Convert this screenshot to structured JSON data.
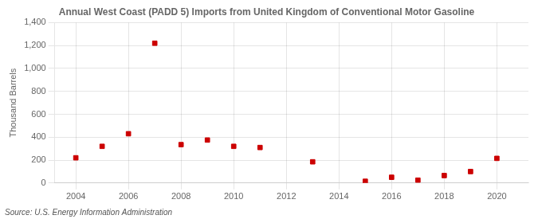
{
  "chart_data": {
    "type": "scatter",
    "title": "Annual West Coast (PADD 5) Imports from United Kingdom of Conventional Motor Gasoline",
    "y_label": "Thousand Barrels",
    "annotations": [
      "Source: U.S. Energy Information Administration"
    ],
    "x": [
      2004,
      2005,
      2006,
      2007,
      2008,
      2009,
      2010,
      2011,
      2013,
      2015,
      2016,
      2017,
      2018,
      2019,
      2020
    ],
    "values": [
      220,
      320,
      430,
      1220,
      335,
      375,
      320,
      310,
      185,
      15,
      50,
      25,
      65,
      100,
      215
    ],
    "color": "#cc0000",
    "marker": "square",
    "xlim": [
      2003.2,
      2021.2
    ],
    "xticks": [
      2004,
      2006,
      2008,
      2010,
      2012,
      2014,
      2016,
      2018,
      2020
    ],
    "ylim": [
      0,
      1400
    ],
    "yticks": [
      0,
      200,
      400,
      600,
      800,
      {
        "value": 1000,
        "label": "1,000"
      },
      {
        "value": 1200,
        "label": "1,200"
      },
      {
        "value": 1400,
        "label": "1,400"
      }
    ],
    "grid": true
  }
}
